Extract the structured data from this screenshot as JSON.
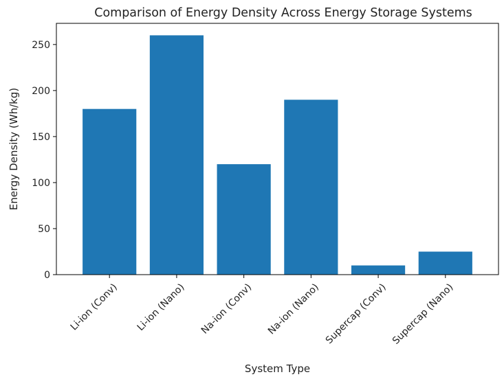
{
  "chart_data": {
    "type": "bar",
    "title": "Comparison of Energy Density Across Energy Storage Systems",
    "xlabel": "System Type",
    "ylabel": "Energy Density (Wh/kg)",
    "categories": [
      "Li-ion (Conv)",
      "Li-ion (Nano)",
      "Na-ion (Conv)",
      "Na-ion (Nano)",
      "Supercap (Conv)",
      "Supercap (Nano)"
    ],
    "values": [
      180,
      260,
      120,
      190,
      10,
      25
    ],
    "ylim": [
      0,
      273
    ],
    "yticks": [
      0,
      50,
      100,
      150,
      200,
      250
    ],
    "grid": false,
    "bar_color": "#1f77b4",
    "xtick_rotation_deg": 45
  }
}
